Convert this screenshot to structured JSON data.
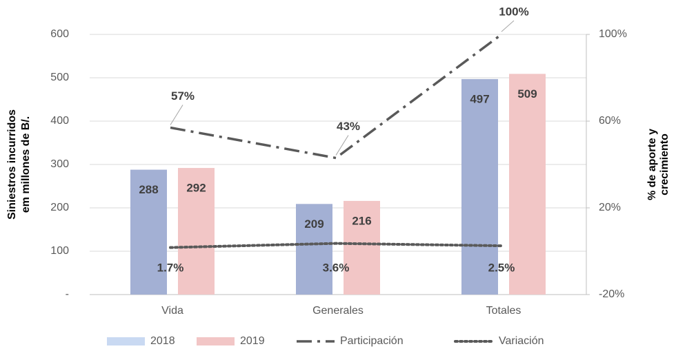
{
  "chart_data": {
    "type": "bar",
    "categories": [
      "Vida",
      "Generales",
      "Totales"
    ],
    "series": [
      {
        "name": "2018",
        "color": "#a3b0d4",
        "values": [
          288,
          209,
          497
        ]
      },
      {
        "name": "2019",
        "color": "#f2c6c6",
        "values": [
          292,
          216,
          509
        ]
      },
      {
        "name": "Participación",
        "type": "line",
        "axis": "y2",
        "color": "#595959",
        "dash": "dash-dot",
        "values": [
          57,
          43,
          100
        ],
        "value_labels": [
          "57%",
          "43%",
          "100%"
        ]
      },
      {
        "name": "Variación",
        "type": "line",
        "axis": "y2",
        "color": "#595959",
        "dash": "dot",
        "values": [
          1.7,
          3.6,
          2.5
        ],
        "value_labels": [
          "1.7%",
          "3.6%",
          "2.5%"
        ]
      }
    ],
    "y_label": [
      "Siniestros incurridos",
      "em millones de B/."
    ],
    "y2_label": [
      "% de aporte y",
      "crecimiento"
    ],
    "ylim": [
      0,
      600
    ],
    "yticks": [
      {
        "value": 0,
        "label": "-"
      },
      100,
      200,
      300,
      400,
      500,
      600
    ],
    "y2lim": [
      -20,
      100
    ],
    "y2ticks": [
      {
        "value": -20,
        "label": "-20%"
      },
      {
        "value": 20,
        "label": "20%"
      },
      {
        "value": 60,
        "label": "60%"
      },
      {
        "value": 100,
        "label": "100%"
      }
    ],
    "grid": true,
    "legend": "bottom"
  }
}
